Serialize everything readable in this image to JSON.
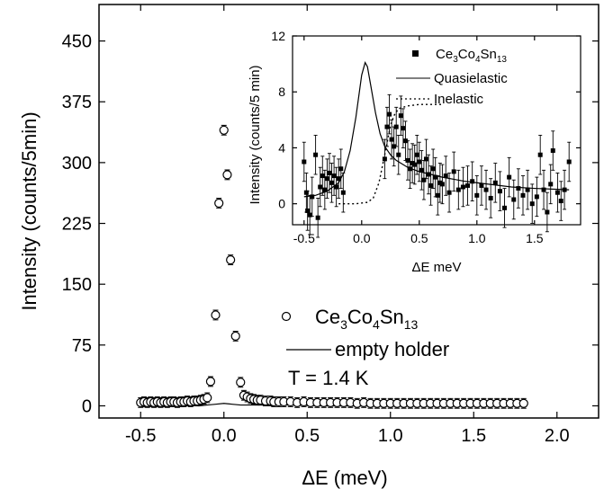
{
  "chart_data": [
    {
      "type": "scatter",
      "xlabel": "ΔE (meV)",
      "ylabel": "Intensity (counts/5min)",
      "xlim": [
        -0.75,
        2.25
      ],
      "ylim": [
        -15,
        495
      ],
      "x_ticks": [
        "-0.5",
        "0.0",
        "0.5",
        "1.0",
        "1.5",
        "2.0"
      ],
      "y_ticks": [
        "0",
        "75",
        "150",
        "225",
        "300",
        "375",
        "450"
      ],
      "legend_items": {
        "sample": {
          "base": "Ce",
          "s1": "3",
          "b2": "Co",
          "s2": "4",
          "b3": "Sn",
          "s3": "13"
        },
        "empty": "empty holder"
      },
      "annotation": "T = 1.4 K",
      "series": [
        {
          "marker": "open-circle",
          "points": [
            [
              -0.5,
              4
            ],
            [
              -0.48,
              5
            ],
            [
              -0.46,
              4
            ],
            [
              -0.44,
              5
            ],
            [
              -0.42,
              4
            ],
            [
              -0.4,
              5
            ],
            [
              -0.38,
              4
            ],
            [
              -0.36,
              5
            ],
            [
              -0.34,
              4
            ],
            [
              -0.32,
              5
            ],
            [
              -0.3,
              5
            ],
            [
              -0.28,
              4
            ],
            [
              -0.26,
              5
            ],
            [
              -0.24,
              5
            ],
            [
              -0.22,
              6
            ],
            [
              -0.2,
              5
            ],
            [
              -0.18,
              6
            ],
            [
              -0.16,
              6
            ],
            [
              -0.14,
              7
            ],
            [
              -0.12,
              8
            ],
            [
              -0.1,
              10
            ],
            [
              -0.08,
              30
            ],
            [
              -0.05,
              112
            ],
            [
              -0.03,
              250
            ],
            [
              0.0,
              340
            ],
            [
              0.02,
              285
            ],
            [
              0.04,
              180
            ],
            [
              0.07,
              86
            ],
            [
              0.1,
              29
            ],
            [
              0.12,
              13
            ],
            [
              0.14,
              11
            ],
            [
              0.16,
              9
            ],
            [
              0.18,
              8
            ],
            [
              0.2,
              7
            ],
            [
              0.22,
              7
            ],
            [
              0.25,
              6
            ],
            [
              0.28,
              6
            ],
            [
              0.3,
              5
            ],
            [
              0.33,
              5
            ],
            [
              0.36,
              5
            ],
            [
              0.4,
              5
            ],
            [
              0.44,
              4
            ],
            [
              0.48,
              5
            ],
            [
              0.52,
              4
            ],
            [
              0.56,
              4
            ],
            [
              0.6,
              4
            ],
            [
              0.64,
              4
            ],
            [
              0.68,
              4
            ],
            [
              0.72,
              4
            ],
            [
              0.76,
              4
            ],
            [
              0.8,
              3
            ],
            [
              0.84,
              4
            ],
            [
              0.88,
              3
            ],
            [
              0.92,
              3
            ],
            [
              0.96,
              3
            ],
            [
              1.0,
              3
            ],
            [
              1.04,
              3
            ],
            [
              1.08,
              3
            ],
            [
              1.12,
              3
            ],
            [
              1.16,
              3
            ],
            [
              1.2,
              3
            ],
            [
              1.24,
              3
            ],
            [
              1.28,
              3
            ],
            [
              1.32,
              3
            ],
            [
              1.36,
              3
            ],
            [
              1.4,
              3
            ],
            [
              1.44,
              3
            ],
            [
              1.48,
              3
            ],
            [
              1.52,
              3
            ],
            [
              1.56,
              3
            ],
            [
              1.6,
              3
            ],
            [
              1.64,
              3
            ],
            [
              1.68,
              3
            ],
            [
              1.72,
              3
            ],
            [
              1.76,
              3
            ],
            [
              1.8,
              3
            ]
          ],
          "error": 6
        },
        {
          "marker": "line",
          "points": [
            [
              -0.5,
              1
            ],
            [
              -0.3,
              1
            ],
            [
              -0.15,
              0
            ],
            [
              -0.1,
              1
            ],
            [
              -0.05,
              2
            ],
            [
              0.0,
              3
            ],
            [
              0.05,
              2
            ],
            [
              0.1,
              1
            ],
            [
              0.2,
              1
            ],
            [
              0.4,
              1
            ],
            [
              0.6,
              0
            ],
            [
              1.0,
              0
            ],
            [
              1.4,
              0
            ],
            [
              1.8,
              0
            ]
          ]
        }
      ]
    },
    {
      "type": "scatter",
      "xlabel": "ΔE meV",
      "ylabel": "Intensity (counts/5 min)",
      "xlim": [
        -0.6,
        1.9
      ],
      "ylim": [
        -1.5,
        12
      ],
      "x_ticks": [
        "-0.5",
        "0.0",
        "0.5",
        "1.0",
        "1.5"
      ],
      "y_ticks": [
        "0",
        "4",
        "8",
        "12"
      ],
      "legend_items": {
        "sample": {
          "base": "Ce",
          "s1": "3",
          "b2": "Co",
          "s2": "4",
          "b3": "Sn",
          "s3": "13"
        },
        "quasi": "Quasielastic",
        "inel": "Inelastic"
      },
      "series": [
        {
          "marker": "filled-square",
          "points": [
            [
              -0.5,
              3.0
            ],
            [
              -0.48,
              0.8
            ],
            [
              -0.47,
              -0.5
            ],
            [
              -0.45,
              -0.8
            ],
            [
              -0.43,
              0.5
            ],
            [
              -0.4,
              3.5
            ],
            [
              -0.38,
              -1.0
            ],
            [
              -0.36,
              1.2
            ],
            [
              -0.34,
              2.0
            ],
            [
              -0.32,
              1.0
            ],
            [
              -0.3,
              1.8
            ],
            [
              -0.28,
              2.2
            ],
            [
              -0.26,
              1.5
            ],
            [
              -0.24,
              2.0
            ],
            [
              -0.22,
              1.2
            ],
            [
              -0.2,
              1.8
            ],
            [
              -0.18,
              2.5
            ],
            [
              -0.16,
              0.8
            ],
            [
              0.2,
              3.2
            ],
            [
              0.22,
              5.5
            ],
            [
              0.24,
              6.4
            ],
            [
              0.26,
              4.6
            ],
            [
              0.28,
              4.1
            ],
            [
              0.3,
              5.5
            ],
            [
              0.32,
              3.5
            ],
            [
              0.34,
              6.3
            ],
            [
              0.36,
              5.4
            ],
            [
              0.38,
              4.5
            ],
            [
              0.4,
              3.1
            ],
            [
              0.42,
              2.5
            ],
            [
              0.44,
              2.9
            ],
            [
              0.46,
              2.8
            ],
            [
              0.48,
              3.5
            ],
            [
              0.5,
              3.0
            ],
            [
              0.52,
              2.4
            ],
            [
              0.54,
              1.7
            ],
            [
              0.56,
              3.2
            ],
            [
              0.58,
              2.1
            ],
            [
              0.6,
              1.3
            ],
            [
              0.62,
              2.5
            ],
            [
              0.64,
              1.9
            ],
            [
              0.66,
              0.6
            ],
            [
              0.68,
              1.5
            ],
            [
              0.7,
              1.4
            ],
            [
              0.73,
              2.0
            ],
            [
              0.76,
              0.8
            ],
            [
              0.8,
              2.3
            ],
            [
              0.84,
              1.0
            ],
            [
              0.88,
              1.2
            ],
            [
              0.92,
              1.3
            ],
            [
              0.96,
              1.6
            ],
            [
              1.0,
              0.6
            ],
            [
              1.04,
              1.3
            ],
            [
              1.08,
              1.0
            ],
            [
              1.12,
              0.4
            ],
            [
              1.16,
              1.5
            ],
            [
              1.2,
              0.9
            ],
            [
              1.24,
              -0.3
            ],
            [
              1.28,
              1.9
            ],
            [
              1.32,
              0.3
            ],
            [
              1.36,
              1.1
            ],
            [
              1.4,
              0.6
            ],
            [
              1.44,
              1.0
            ],
            [
              1.48,
              0.0
            ],
            [
              1.52,
              0.5
            ],
            [
              1.55,
              3.5
            ],
            [
              1.58,
              1.0
            ],
            [
              1.61,
              -0.6
            ],
            [
              1.64,
              1.4
            ],
            [
              1.66,
              3.8
            ],
            [
              1.7,
              0.8
            ],
            [
              1.73,
              0.2
            ],
            [
              1.76,
              1.0
            ],
            [
              1.8,
              3.0
            ]
          ],
          "error": 1.4
        },
        {
          "marker": "solid-line",
          "points": [
            [
              -0.5,
              0.5
            ],
            [
              -0.4,
              0.6
            ],
            [
              -0.3,
              0.9
            ],
            [
              -0.2,
              1.5
            ],
            [
              -0.15,
              2.3
            ],
            [
              -0.1,
              3.8
            ],
            [
              -0.05,
              6.2
            ],
            [
              0.0,
              9.2
            ],
            [
              0.03,
              10.1
            ],
            [
              0.05,
              9.8
            ],
            [
              0.08,
              8.4
            ],
            [
              0.12,
              6.5
            ],
            [
              0.16,
              5.0
            ],
            [
              0.2,
              4.1
            ],
            [
              0.25,
              3.5
            ],
            [
              0.3,
              3.1
            ],
            [
              0.4,
              2.6
            ],
            [
              0.5,
              2.3
            ],
            [
              0.7,
              1.9
            ],
            [
              0.9,
              1.6
            ],
            [
              1.1,
              1.4
            ],
            [
              1.3,
              1.2
            ],
            [
              1.5,
              1.1
            ],
            [
              1.8,
              1.0
            ]
          ]
        },
        {
          "marker": "dotted-line",
          "points": [
            [
              -0.2,
              0.0
            ],
            [
              -0.05,
              0.0
            ],
            [
              0.05,
              0.1
            ],
            [
              0.1,
              0.4
            ],
            [
              0.15,
              1.5
            ],
            [
              0.2,
              3.5
            ],
            [
              0.25,
              5.6
            ],
            [
              0.28,
              6.3
            ],
            [
              0.32,
              6.8
            ],
            [
              0.4,
              7.0
            ],
            [
              0.5,
              7.1
            ],
            [
              0.7,
              7.1
            ]
          ]
        }
      ]
    }
  ]
}
